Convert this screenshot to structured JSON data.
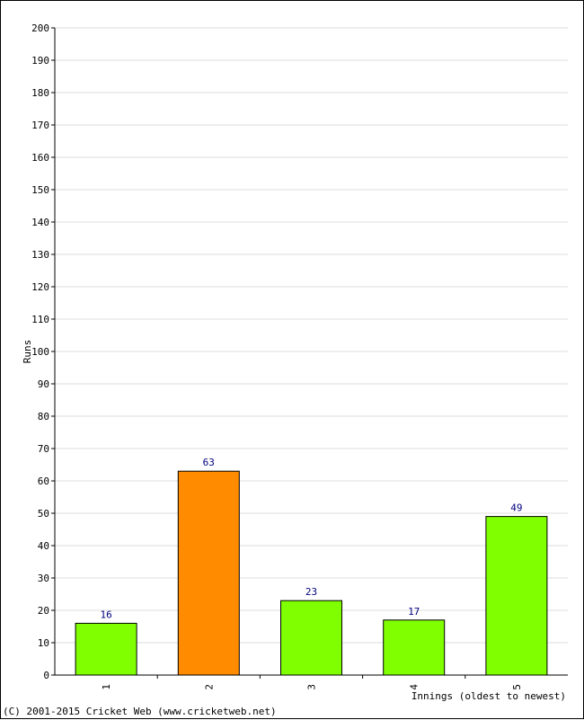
{
  "chart_data": {
    "type": "bar",
    "categories": [
      "1",
      "2",
      "3",
      "4",
      "5"
    ],
    "values": [
      16,
      63,
      23,
      17,
      49
    ],
    "bar_colors": [
      "#7fff00",
      "#ff8c00",
      "#7fff00",
      "#7fff00",
      "#7fff00"
    ],
    "xlabel": "Innings (oldest to newest)",
    "ylabel": "Runs",
    "ylim": [
      0,
      200
    ],
    "ytick_step": 10,
    "grid": true
  },
  "footer": {
    "copyright": "(C) 2001-2015 Cricket Web (www.cricketweb.net)"
  }
}
